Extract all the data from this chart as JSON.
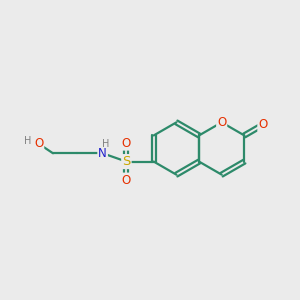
{
  "background_color": "#ebebeb",
  "bond_color": "#2d8a6a",
  "atom_colors": {
    "O": "#e63000",
    "N": "#2020cc",
    "S": "#c8a800",
    "H": "#808080"
  },
  "figsize": [
    3.0,
    3.0
  ],
  "dpi": 100,
  "lw": 1.6,
  "fs": 8.5
}
